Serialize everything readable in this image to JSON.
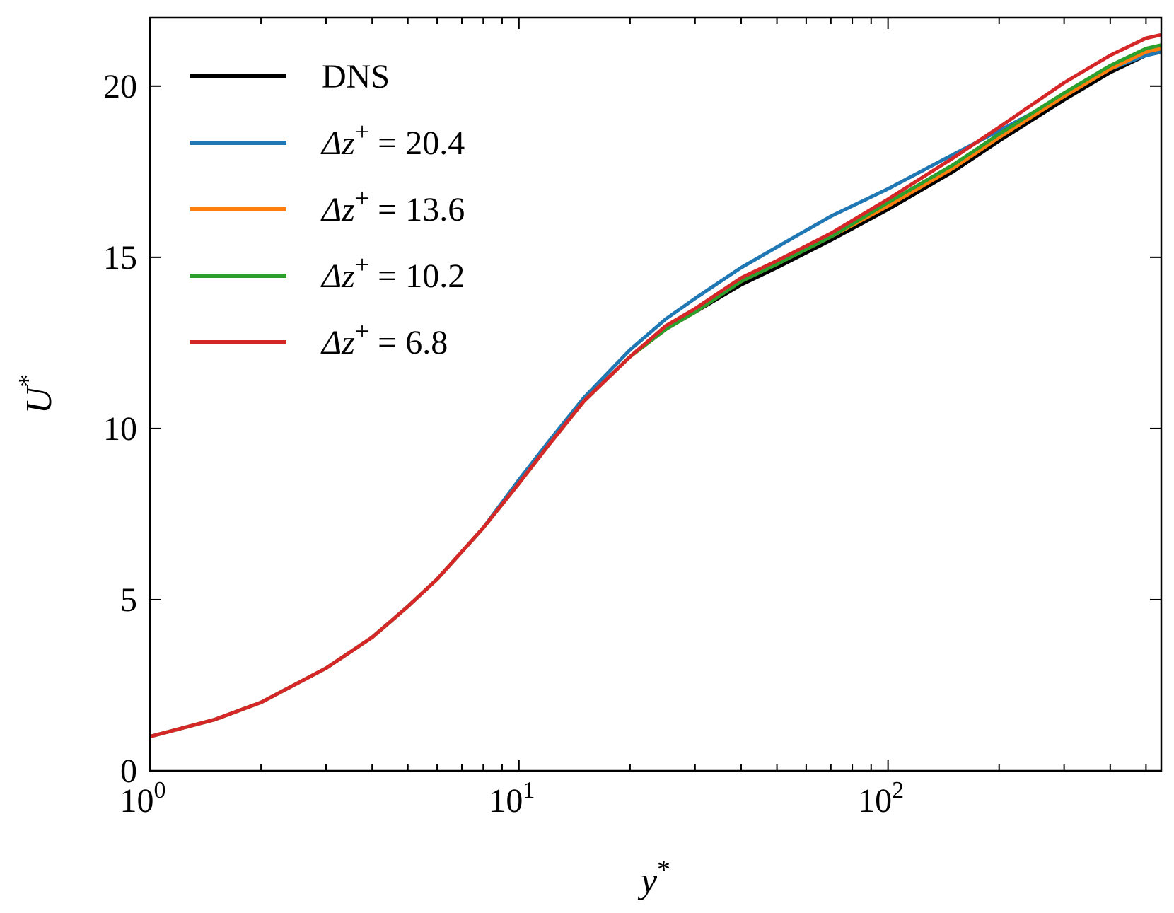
{
  "chart_data": {
    "type": "line",
    "xscale": "log",
    "xlim": [
      1,
      550
    ],
    "ylim": [
      0,
      22
    ],
    "xlabel": "y*",
    "ylabel": "U*",
    "xticks": [
      {
        "value": 1,
        "base": "10",
        "exp": "0"
      },
      {
        "value": 10,
        "base": "10",
        "exp": "1"
      },
      {
        "value": 100,
        "base": "10",
        "exp": "2"
      }
    ],
    "yticks": [
      0,
      5,
      10,
      15,
      20
    ],
    "legend_position": "top-left",
    "series": [
      {
        "name": "DNS",
        "label_parts": {
          "main": "DNS"
        },
        "color": "#000000",
        "x": [
          1,
          1.5,
          2,
          3,
          4,
          5,
          6,
          7,
          8,
          10,
          12,
          15,
          20,
          25,
          30,
          40,
          50,
          70,
          100,
          150,
          200,
          300,
          400,
          500,
          550
        ],
        "y": [
          1.0,
          1.5,
          2.0,
          3.0,
          3.9,
          4.8,
          5.6,
          6.4,
          7.1,
          8.4,
          9.5,
          10.8,
          12.1,
          12.9,
          13.4,
          14.2,
          14.7,
          15.5,
          16.4,
          17.5,
          18.4,
          19.6,
          20.4,
          20.9,
          21.0
        ]
      },
      {
        "name": "Δz+ = 20.4",
        "label_parts": {
          "main": "Δz",
          "sup": "+",
          "rest": " = 20.4"
        },
        "color": "#1f77b4",
        "x": [
          1,
          1.5,
          2,
          3,
          4,
          5,
          6,
          7,
          8,
          10,
          12,
          15,
          20,
          25,
          30,
          40,
          50,
          70,
          100,
          150,
          200,
          300,
          400,
          500,
          550
        ],
        "y": [
          1.0,
          1.5,
          2.0,
          3.0,
          3.9,
          4.8,
          5.6,
          6.4,
          7.1,
          8.5,
          9.6,
          10.9,
          12.3,
          13.2,
          13.8,
          14.7,
          15.3,
          16.2,
          17.0,
          18.0,
          18.7,
          19.7,
          20.5,
          20.9,
          21.0
        ]
      },
      {
        "name": "Δz+ = 13.6",
        "label_parts": {
          "main": "Δz",
          "sup": "+",
          "rest": " = 13.6"
        },
        "color": "#ff7f0e",
        "x": [
          1,
          1.5,
          2,
          3,
          4,
          5,
          6,
          7,
          8,
          10,
          12,
          15,
          20,
          25,
          30,
          40,
          50,
          70,
          100,
          150,
          200,
          300,
          400,
          500,
          550
        ],
        "y": [
          1.0,
          1.5,
          2.0,
          3.0,
          3.9,
          4.8,
          5.6,
          6.4,
          7.1,
          8.4,
          9.5,
          10.8,
          12.1,
          12.9,
          13.4,
          14.3,
          14.8,
          15.6,
          16.5,
          17.6,
          18.5,
          19.7,
          20.5,
          21.0,
          21.1
        ]
      },
      {
        "name": "Δz+ = 10.2",
        "label_parts": {
          "main": "Δz",
          "sup": "+",
          "rest": " = 10.2"
        },
        "color": "#2ca02c",
        "x": [
          1,
          1.5,
          2,
          3,
          4,
          5,
          6,
          7,
          8,
          10,
          12,
          15,
          20,
          25,
          30,
          40,
          50,
          70,
          100,
          150,
          200,
          300,
          400,
          500,
          550
        ],
        "y": [
          1.0,
          1.5,
          2.0,
          3.0,
          3.9,
          4.8,
          5.6,
          6.4,
          7.1,
          8.4,
          9.5,
          10.8,
          12.1,
          12.9,
          13.4,
          14.3,
          14.8,
          15.6,
          16.6,
          17.7,
          18.6,
          19.8,
          20.6,
          21.1,
          21.2
        ]
      },
      {
        "name": "Δz+ = 6.8",
        "label_parts": {
          "main": "Δz",
          "sup": "+",
          "rest": " = 6.8"
        },
        "color": "#d62728",
        "x": [
          1,
          1.5,
          2,
          3,
          4,
          5,
          6,
          7,
          8,
          10,
          12,
          15,
          20,
          25,
          30,
          40,
          50,
          70,
          100,
          150,
          200,
          300,
          400,
          500,
          550
        ],
        "y": [
          1.0,
          1.5,
          2.0,
          3.0,
          3.9,
          4.8,
          5.6,
          6.4,
          7.1,
          8.4,
          9.5,
          10.8,
          12.1,
          13.0,
          13.5,
          14.4,
          14.9,
          15.7,
          16.7,
          17.9,
          18.8,
          20.1,
          20.9,
          21.4,
          21.5
        ]
      }
    ]
  }
}
